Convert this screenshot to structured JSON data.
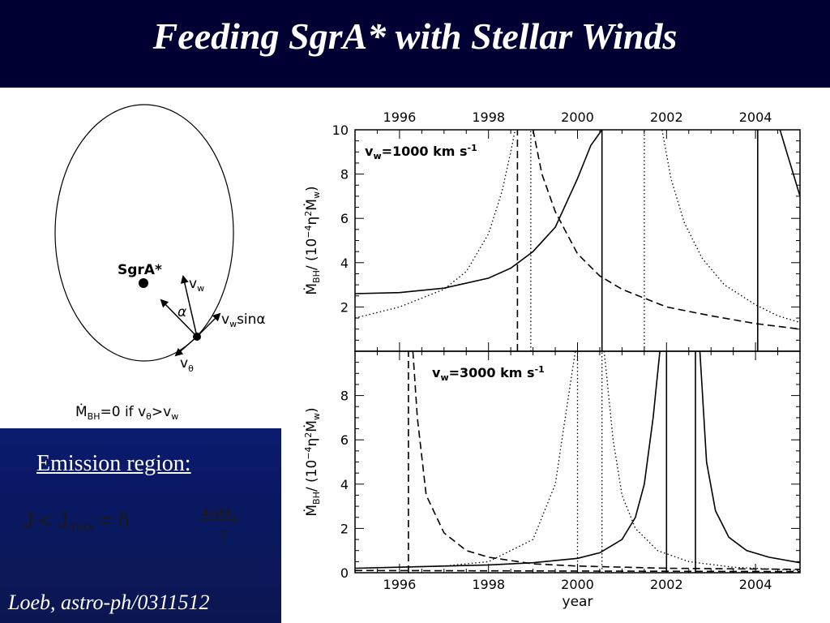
{
  "slide": {
    "title": "Feeding SgrA* with Stellar Winds",
    "citation": "Loeb, astro-ph/0311512"
  },
  "diagram": {
    "center_label": "SgrA*",
    "vw_label": "v",
    "vw_sub": "w",
    "alpha_label": "α",
    "vwsin_label": "v",
    "vwsin_sub": "w",
    "vwsin_tail": "sinα",
    "vtheta_label": "v",
    "vtheta_sub": "θ",
    "condition_pre": "Ṁ",
    "condition_sub": "BH",
    "condition_text": "=0  if  v",
    "condition_sub2": "θ",
    "condition_mid": ">v",
    "condition_sub3": "w"
  },
  "emission": {
    "heading": "Emission region:",
    "formula_lhs": "J <  J",
    "formula_sub": "max",
    "formula_eq": " =  ñ",
    "formula_frac_top": "4GM",
    "formula_frac_top_sub": "T",
    "formula_frac_bottom": "c"
  },
  "chart_data": [
    {
      "type": "line",
      "panel": "top",
      "annotation": "v_w=1000 km s^-1",
      "annotation_parts": {
        "v": "v",
        "sub": "w",
        "rest": "=1000  km  s",
        "sup": "-1"
      },
      "xlabel": "",
      "top_axis_ticks": [
        "1996",
        "1998",
        "2000",
        "2002",
        "2004"
      ],
      "ylabel": "Ṁ_BH / (10^-4 η^2 Ṁ_w)",
      "ylabel_parts": {
        "a": "Ṁ",
        "a_sub": "BH",
        "b": "/  (10",
        "b_sup": "−4",
        "c": "η",
        "c_sup": "2",
        "d": "Ṁ",
        "d_sub": "w",
        "e": ")"
      },
      "xlim": [
        1995,
        2005
      ],
      "ylim": [
        0,
        10
      ],
      "yticks": [
        "2",
        "4",
        "6",
        "8",
        "10"
      ],
      "series": [
        {
          "style": "solid",
          "x": [
            1995.0,
            1996.0,
            1997.0,
            1998.0,
            1998.5,
            1999.0,
            1999.5,
            2000.0,
            2000.3,
            2000.55
          ],
          "y": [
            2.6,
            2.65,
            2.85,
            3.3,
            3.75,
            4.5,
            5.6,
            7.8,
            9.3,
            10
          ]
        },
        {
          "style": "solid",
          "x": [
            2000.55,
            2000.55
          ],
          "y": [
            10,
            0
          ]
        },
        {
          "style": "solid",
          "x": [
            2004.05,
            2004.05
          ],
          "y": [
            10,
            0
          ]
        },
        {
          "style": "solid",
          "x": [
            2004.55,
            2004.7,
            2004.85,
            2005.0
          ],
          "y": [
            10,
            9.0,
            8.0,
            7.0
          ]
        },
        {
          "style": "dashed",
          "x": [
            1998.65,
            1998.65
          ],
          "y": [
            0,
            10
          ]
        },
        {
          "style": "dashed",
          "x": [
            1999.0,
            1999.2,
            1999.5,
            2000.0,
            2000.5,
            2001.0,
            2002.0,
            2003.0,
            2004.0,
            2005.0
          ],
          "y": [
            10,
            8.0,
            6.3,
            4.4,
            3.4,
            2.8,
            2.0,
            1.6,
            1.25,
            1.0
          ]
        },
        {
          "style": "dotted",
          "x": [
            1995.0,
            1996.0,
            1997.0,
            1997.5,
            1998.0,
            1998.3,
            1998.5,
            1998.6
          ],
          "y": [
            1.5,
            2.0,
            2.8,
            3.6,
            5.3,
            7.2,
            9.0,
            10
          ]
        },
        {
          "style": "dotted",
          "x": [
            1998.95,
            1998.95
          ],
          "y": [
            0,
            10
          ]
        },
        {
          "style": "dotted",
          "x": [
            2001.5,
            2001.5
          ],
          "y": [
            0,
            10
          ]
        },
        {
          "style": "dotted",
          "x": [
            2001.9,
            2002.1,
            2002.4,
            2002.8,
            2003.3,
            2004.0,
            2004.5,
            2005.0
          ],
          "y": [
            10,
            7.8,
            5.8,
            4.2,
            3.0,
            2.1,
            1.6,
            1.3
          ]
        }
      ]
    },
    {
      "type": "line",
      "panel": "bottom",
      "annotation": "v_w=3000 km s^-1",
      "annotation_parts": {
        "v": "v",
        "sub": "w",
        "rest": "=3000  km  s",
        "sup": "-1"
      },
      "xlabel": "year",
      "xticks": [
        "1996",
        "1998",
        "2000",
        "2002",
        "2004"
      ],
      "ylabel": "Ṁ_BH / (10^-4 η^2 Ṁ_w)",
      "ylabel_parts": {
        "a": "Ṁ",
        "a_sub": "BH",
        "b": "/  (10",
        "b_sup": "−4",
        "c": "η",
        "c_sup": "2",
        "d": "Ṁ",
        "d_sub": "w",
        "e": ")"
      },
      "xlim": [
        1995,
        2005
      ],
      "ylim": [
        0,
        10
      ],
      "yticks": [
        "0",
        "2",
        "4",
        "6",
        "8"
      ],
      "series": [
        {
          "style": "solid",
          "x": [
            1995.0,
            1996.0,
            1997.0,
            1998.0,
            1999.0,
            2000.0,
            2000.5,
            2001.0,
            2001.3,
            2001.5,
            2001.7,
            2001.85
          ],
          "y": [
            0.2,
            0.25,
            0.3,
            0.35,
            0.45,
            0.65,
            0.9,
            1.5,
            2.5,
            4.0,
            7.0,
            10
          ]
        },
        {
          "style": "solid",
          "x": [
            2002.0,
            2002.0
          ],
          "y": [
            10,
            0
          ]
        },
        {
          "style": "solid",
          "x": [
            2002.65,
            2002.65
          ],
          "y": [
            10,
            0
          ]
        },
        {
          "style": "solid",
          "x": [
            2002.75,
            2002.9,
            2003.1,
            2003.4,
            2003.8,
            2004.3,
            2005.0
          ],
          "y": [
            10,
            5.0,
            2.8,
            1.6,
            1.0,
            0.7,
            0.45
          ]
        },
        {
          "style": "dashed",
          "x": [
            1996.2,
            1996.2
          ],
          "y": [
            0,
            10
          ]
        },
        {
          "style": "dashed",
          "x": [
            1996.3,
            1996.4,
            1996.6,
            1997.0,
            1997.5,
            1998.0,
            1999.0,
            2000.0,
            2002.0,
            2005.0
          ],
          "y": [
            10,
            7.0,
            3.5,
            1.8,
            1.0,
            0.7,
            0.4,
            0.3,
            0.2,
            0.15
          ]
        },
        {
          "style": "dashed",
          "x": [
            1995.0,
            2005.0
          ],
          "y": [
            0.1,
            0.05
          ]
        },
        {
          "style": "dotted",
          "x": [
            1995.0,
            1997.0,
            1998.0,
            1999.0,
            1999.5,
            1999.8,
            1999.95
          ],
          "y": [
            0.2,
            0.3,
            0.5,
            1.5,
            4.0,
            8.0,
            10
          ]
        },
        {
          "style": "dotted",
          "x": [
            2000.0,
            2000.0
          ],
          "y": [
            0,
            10
          ]
        },
        {
          "style": "dotted",
          "x": [
            2000.55,
            2000.55
          ],
          "y": [
            0,
            10
          ]
        },
        {
          "style": "dotted",
          "x": [
            2000.6,
            2000.8,
            2001.0,
            2001.3,
            2001.8,
            2002.5,
            2003.5,
            2005.0
          ],
          "y": [
            10,
            6.0,
            3.5,
            2.0,
            1.0,
            0.5,
            0.25,
            0.1
          ]
        }
      ]
    }
  ]
}
